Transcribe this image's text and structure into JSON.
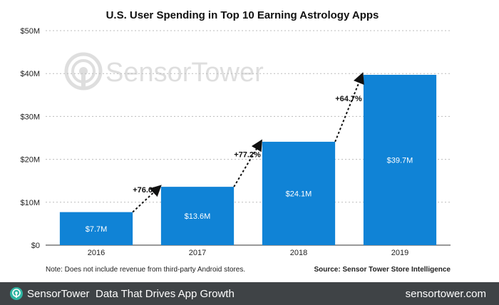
{
  "chart_data": {
    "type": "bar",
    "title": "U.S. User Spending in Top 10 Earning Astrology Apps",
    "categories": [
      "2016",
      "2017",
      "2018",
      "2019"
    ],
    "values": [
      7.7,
      13.6,
      24.1,
      39.7
    ],
    "value_labels": [
      "$7.7M",
      "$13.6M",
      "$24.1M",
      "$39.7M"
    ],
    "growth_labels": [
      "+76.6%",
      "+77.2%",
      "+64.7%"
    ],
    "ylim": [
      0,
      50
    ],
    "yticks": [
      0,
      10,
      20,
      30,
      40,
      50
    ],
    "ytick_labels": [
      "$0",
      "$10M",
      "$20M",
      "$30M",
      "$40M",
      "$50M"
    ],
    "xlabel": "",
    "ylabel": "",
    "grid": true,
    "bar_color": "#1083d6",
    "note": "Note: Does not include revenue from third-party Android stores.",
    "source": "Source: Sensor Tower Store Intelligence"
  },
  "watermark": {
    "text": "SensorTower"
  },
  "footer": {
    "brand_part1": "Sensor",
    "brand_part2": "Tower",
    "tagline": "Data That Drives App Growth",
    "site": "sensortower.com",
    "background": "#3f4346",
    "logo_icon": "sensortower-logo-icon"
  }
}
